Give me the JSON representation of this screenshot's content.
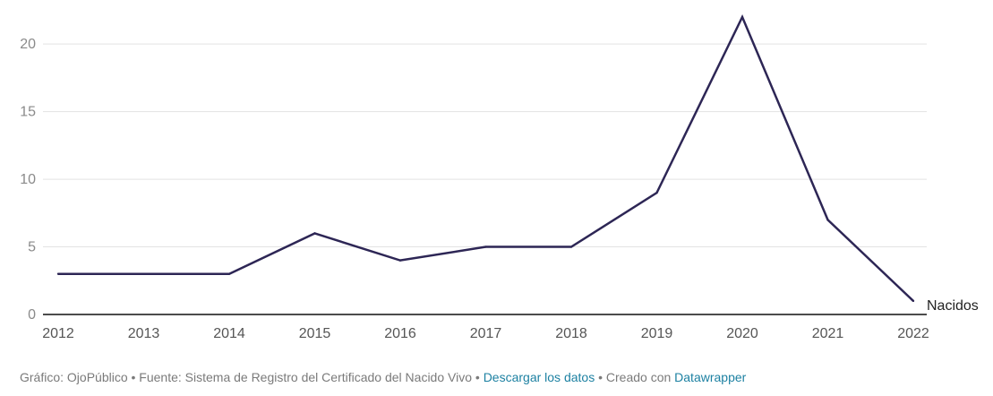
{
  "chart_data": {
    "type": "line",
    "x": [
      2012,
      2013,
      2014,
      2015,
      2016,
      2017,
      2018,
      2019,
      2020,
      2021,
      2022
    ],
    "x_ticks": [
      "2012",
      "2013",
      "2014",
      "2015",
      "2016",
      "2017",
      "2018",
      "2019",
      "2020",
      "2021",
      "2022"
    ],
    "ylim": [
      0,
      22
    ],
    "y_ticks": [
      0,
      5,
      10,
      15,
      20
    ],
    "grid": true,
    "series": [
      {
        "name": "Nacidos",
        "values": [
          3,
          3,
          3,
          6,
          4,
          5,
          5,
          9,
          22,
          7,
          1
        ],
        "color": "#2d2655"
      }
    ]
  },
  "footer": {
    "credit": "Gráfico: OjoPúblico • Fuente: Sistema de Registro del Certificado del Nacido Vivo • ",
    "download_link": "Descargar los datos",
    "created_prefix": " • Creado con ",
    "tool_link": "Datawrapper"
  },
  "colors": {
    "line": "#2d2655",
    "grid": "#e3e3e3",
    "axis": "#111111",
    "tick_text": "#8a8a8a",
    "link": "#1d81a2"
  }
}
